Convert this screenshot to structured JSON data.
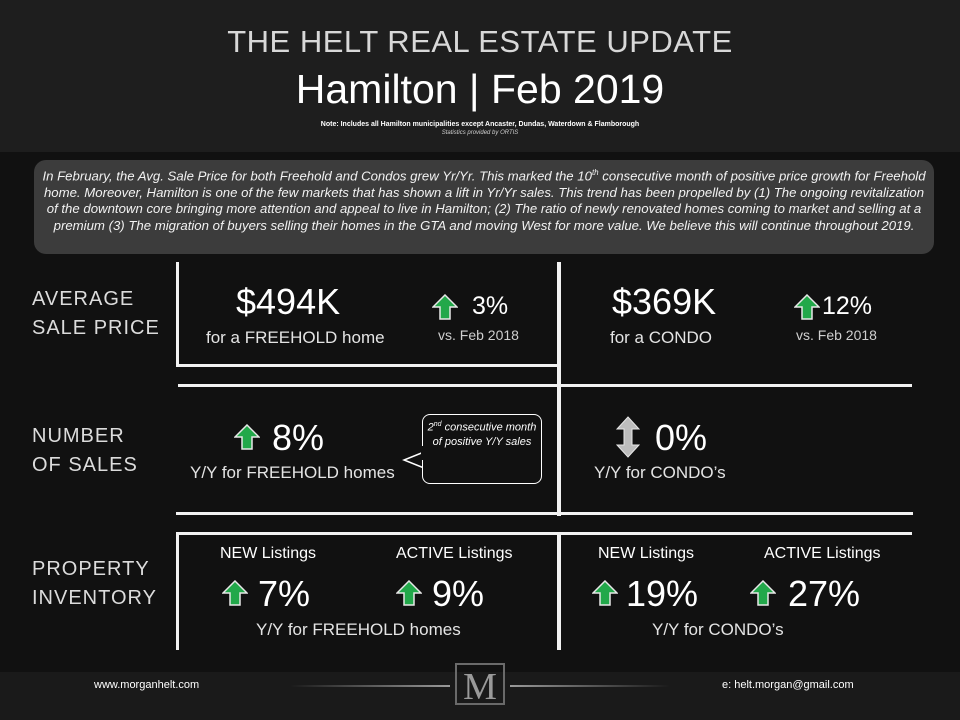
{
  "header": {
    "title": "THE HELT REAL ESTATE UPDATE",
    "subtitle": "Hamilton | Feb 2019",
    "note": "Note: Includes all Hamilton municipalities except Ancaster, Dundas, Waterdown & Flamborough",
    "stats": "Statistics provided by ORTIS"
  },
  "summary": {
    "part1": "In February, the Avg. Sale Price for both Freehold and Condos grew Yr/Yr. This marked the 10",
    "sup": "th",
    "part2": " consecutive month of positive price growth for Freehold home. Moreover, Hamilton is one of the few markets that has shown a lift in Yr/Yr sales. This trend has been propelled by (1) The ongoing revitalization of the downtown core bringing more attention and appeal to live in Hamilton; (2) The ratio of newly renovated homes coming to market and selling at a premium (3) The migration of buyers selling their homes in the GTA and moving West for more value. We believe this will continue throughout 2019."
  },
  "rows": {
    "price": {
      "line1": "AVERAGE",
      "line2": "SALE PRICE"
    },
    "sales": {
      "line1": "NUMBER",
      "line2": "OF SALES"
    },
    "inventory": {
      "line1": "PROPERTY",
      "line2": "INVENTORY"
    }
  },
  "price": {
    "freehold": {
      "value": "$494K",
      "label": "for a FREEHOLD home",
      "change": "3%",
      "compare": "vs. Feb 2018"
    },
    "condo": {
      "value": "$369K",
      "label": "for a CONDO",
      "change": "12%",
      "compare": "vs. Feb 2018"
    }
  },
  "sales": {
    "freehold": {
      "change": "8%",
      "label": "Y/Y for FREEHOLD homes"
    },
    "condo": {
      "change": "0%",
      "label": "Y/Y for CONDO’s"
    },
    "callout": {
      "pre": "2",
      "sup": "nd",
      "text": " consecutive month of positive Y/Y sales"
    }
  },
  "inventory": {
    "freehold": {
      "new_label": "NEW Listings",
      "new_value": "7%",
      "active_label": "ACTIVE Listings",
      "active_value": "9%",
      "label": "Y/Y for FREEHOLD homes"
    },
    "condo": {
      "new_label": "NEW Listings",
      "new_value": "19%",
      "active_label": "ACTIVE Listings",
      "active_value": "27%",
      "label": "Y/Y for CONDO’s"
    }
  },
  "footer": {
    "website": "www.morganhelt.com",
    "email": "e: helt.morgan@gmail.com",
    "logo": "M"
  },
  "icons": {
    "up_arrow": "up-arrow-icon",
    "double_arrow": "up-down-arrow-icon",
    "up_color": "#22a84a",
    "neutral_color": "#bdbdbd"
  }
}
